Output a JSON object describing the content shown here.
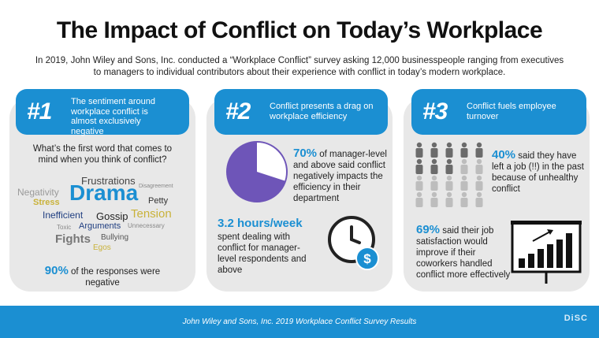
{
  "title": "The Impact of Conflict on Today’s Workplace",
  "intro": "In 2019, John Wiley and Sons, Inc. conducted a “Workplace Conflict” survey asking 12,000 businesspeople ranging from executives to managers to individual contributors about their experience with conflict in today’s modern workplace.",
  "panels": [
    {
      "num": "#1",
      "banner": "The sentiment around workplace conflict is almost exclusively negative",
      "question": "What’s the first word that comes to mind when you think of conflict?",
      "words": [
        "Frustrations",
        "Disagreement",
        "Negativity",
        "Drama",
        "Stress",
        "Petty",
        "Inefficient",
        "Gossip",
        "Tension",
        "Toxic",
        "Arguments",
        "Unnecessary",
        "Fights",
        "Bullying",
        "Egos"
      ],
      "stat": "90%",
      "stat_text": "of the responses were negative"
    },
    {
      "num": "#2",
      "banner": "Conflict presents a drag on workplace efficiency",
      "stat1": "70%",
      "stat1_text": "of manager-level and above said conflict negatively impacts the efficiency in their department",
      "pie_value": 70,
      "stat2": "3.2 hours/week",
      "stat2_text": "spent dealing with conflict for manager-level respondents and above"
    },
    {
      "num": "#3",
      "banner": "Conflict fuels employee turnover",
      "stat1": "40%",
      "stat1_text": "said they have left a job (!!) in the past because of unhealthy conflict",
      "people_highlighted": 8,
      "people_total": 20,
      "stat2": "69%",
      "stat2_text": "said their job satisfaction would improve if their coworkers handled conflict more effectively"
    }
  ],
  "footer": "John Wiley and Sons, Inc. 2019 Workplace Conflict Survey Results",
  "logo": "DiSC",
  "colors": {
    "accent": "#1b8fd2",
    "pie": "#6e55b8",
    "people": "#6b6b6b",
    "people_light": "#bdbdbd"
  }
}
